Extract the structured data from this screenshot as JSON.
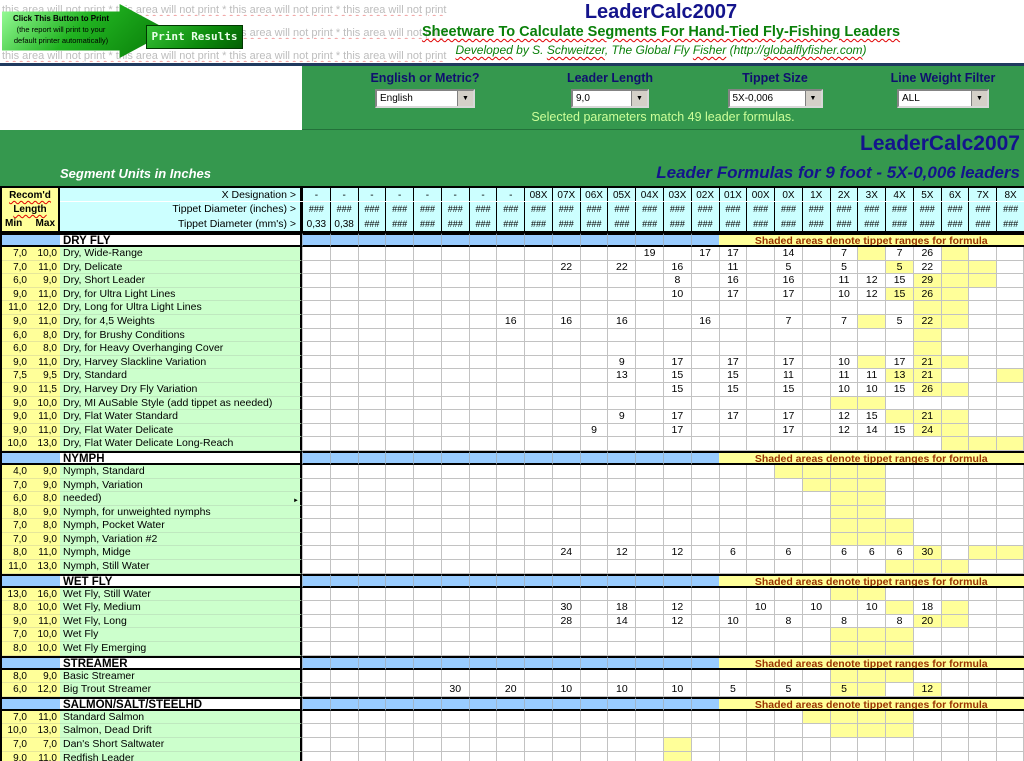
{
  "colors": {
    "band_green": "#35984e",
    "title_navy": "#14148c",
    "subtitle_green": "#0a800a",
    "header_cyan": "#ccffff",
    "accent_yellow": "#ffff99",
    "label_green": "#ccffcc",
    "section_blue": "#99ccff",
    "banner_text": "#993300"
  },
  "print_area": {
    "no_print_text": "this area will not print * this area will not print * this area will not print * this area will not print",
    "arrow_line1": "Click This Button to Print",
    "arrow_line2": "(the report will print to your",
    "arrow_line3": "default printer automatically)",
    "button_label": "Print Results"
  },
  "masthead": {
    "title": "LeaderCalc2007",
    "subtitle": "Sheetware To Calculate Segments For Hand-Tied Fly-Fishing Leaders",
    "byline_parts": [
      {
        "text": "Developed",
        "wavy": true
      },
      {
        "text": " by S. ",
        "wavy": false
      },
      {
        "text": "Schweitzer",
        "wavy": true
      },
      {
        "text": ", The Global Fly ",
        "wavy": false
      },
      {
        "text": "Fisher",
        "wavy": true
      },
      {
        "text": " (http://",
        "wavy": false
      },
      {
        "text": "globalflyfisher.com",
        "wavy": true
      },
      {
        "text": ")",
        "wavy": false
      }
    ]
  },
  "filters": [
    {
      "label": "English or Metric?",
      "value": "English"
    },
    {
      "label": "Leader Length",
      "value": "9,0"
    },
    {
      "label": "Tippet Size",
      "value": "5X-0,006"
    },
    {
      "label": "Line Weight Filter",
      "value": "ALL"
    }
  ],
  "filter_status": "Selected parameters match 49 leader formulas.",
  "sheet_header": {
    "app_title": "LeaderCalc2007",
    "units_label": "Segment Units in Inches",
    "formulas_title": "Leader Formulas for 9 foot - 5X-0,006 leaders"
  },
  "grid": {
    "recomd_line1": "Recom'd",
    "recomd_line2": "Length",
    "min_label": "Min",
    "max_label": "Max",
    "row_labels": [
      "X Designation >",
      "Tippet Diameter (inches) >",
      "Tippet Diameter (mm's) >"
    ],
    "columns": [
      "-",
      "-",
      "-",
      "-",
      "-",
      "-",
      "-",
      "-",
      "08X",
      "07X",
      "06X",
      "05X",
      "04X",
      "03X",
      "02X",
      "01X",
      "00X",
      "0X",
      "1X",
      "2X",
      "3X",
      "4X",
      "5X",
      "6X",
      "7X",
      "8X"
    ],
    "inches_row": [
      "###",
      "###",
      "###",
      "###",
      "###",
      "###",
      "###",
      "###",
      "###",
      "###",
      "###",
      "###",
      "###",
      "###",
      "###",
      "###",
      "###",
      "###",
      "###",
      "###",
      "###",
      "###",
      "###",
      "###",
      "###",
      "###"
    ],
    "mms_row": [
      "0,33",
      "0,38",
      "###",
      "###",
      "###",
      "###",
      "###",
      "###",
      "###",
      "###",
      "###",
      "###",
      "###",
      "###",
      "###",
      "###",
      "###",
      "###",
      "###",
      "###",
      "###",
      "###",
      "###",
      "###",
      "###",
      "###"
    ],
    "banner": "Shaded areas denote tippet ranges for formula"
  },
  "sections": [
    {
      "name": "DRY FLY",
      "rows": [
        {
          "min": "7,0",
          "max": "10,0",
          "label": "Dry, Wide-Range",
          "cells": {
            "12": "19",
            "14": "17",
            "15": "17",
            "17": "14",
            "19": "7",
            "21": "7",
            "22": "26"
          },
          "shaded": [
            20,
            23
          ]
        },
        {
          "min": "7,0",
          "max": "11,0",
          "label": "Dry, Delicate",
          "cells": {
            "9": "22",
            "11": "22",
            "13": "16",
            "15": "11",
            "17": "5",
            "19": "5",
            "21": "5",
            "22": "22"
          },
          "shaded": [
            21,
            23,
            24
          ]
        },
        {
          "min": "6,0",
          "max": "9,0",
          "label": "Dry, Short Leader",
          "cells": {
            "13": "8",
            "15": "16",
            "17": "16",
            "19": "11",
            "20": "12",
            "21": "15",
            "22": "29"
          },
          "shaded": [
            22,
            23,
            24
          ]
        },
        {
          "min": "9,0",
          "max": "11,0",
          "label": "Dry, for Ultra Light Lines",
          "cells": {
            "13": "10",
            "15": "17",
            "17": "17",
            "19": "10",
            "20": "12",
            "21": "15",
            "22": "26"
          },
          "shaded": [
            21,
            22,
            23
          ]
        },
        {
          "min": "11,0",
          "max": "12,0",
          "label": "Dry, Long for Ultra Light Lines",
          "cells": {},
          "shaded": [
            22,
            23
          ]
        },
        {
          "min": "9,0",
          "max": "11,0",
          "label": "Dry, for 4,5 Weights",
          "cells": {
            "7": "16",
            "9": "16",
            "11": "16",
            "14": "16",
            "17": "7",
            "19": "7",
            "21": "5",
            "22": "22"
          },
          "shaded": [
            20,
            22,
            23
          ]
        },
        {
          "min": "6,0",
          "max": "8,0",
          "label": "Dry, for Brushy Conditions",
          "cells": {},
          "shaded": [
            22
          ]
        },
        {
          "min": "6,0",
          "max": "8,0",
          "label": "Dry, for Heavy Overhanging Cover",
          "cells": {},
          "shaded": [
            22
          ]
        },
        {
          "min": "9,0",
          "max": "11,0",
          "label": "Dry, Harvey Slackline Variation",
          "cells": {
            "11": "9",
            "13": "17",
            "15": "17",
            "17": "17",
            "19": "10",
            "21": "17",
            "22": "21"
          },
          "shaded": [
            20,
            22,
            23
          ]
        },
        {
          "min": "7,5",
          "max": "9,5",
          "label": "Dry, Standard",
          "cells": {
            "11": "13",
            "13": "15",
            "15": "15",
            "17": "11",
            "19": "11",
            "20": "11",
            "21": "13",
            "22": "21"
          },
          "shaded": [
            21,
            22,
            25
          ]
        },
        {
          "min": "9,0",
          "max": "11,5",
          "label": "Dry, Harvey Dry Fly Variation",
          "cells": {
            "13": "15",
            "15": "15",
            "17": "15",
            "19": "10",
            "20": "10",
            "21": "15",
            "22": "26"
          },
          "shaded": [
            22,
            23
          ]
        },
        {
          "min": "9,0",
          "max": "10,0",
          "label": "Dry, MI AuSable Style (add tippet as needed)",
          "cells": {},
          "shaded": [
            19,
            20
          ]
        },
        {
          "min": "9,0",
          "max": "11,0",
          "label": "Dry, Flat Water Standard",
          "cells": {
            "11": "9",
            "13": "17",
            "15": "17",
            "17": "17",
            "19": "12",
            "20": "15",
            "22": "21"
          },
          "shaded": [
            21,
            22,
            23
          ]
        },
        {
          "min": "9,0",
          "max": "11,0",
          "label": "Dry, Flat Water Delicate",
          "cells": {
            "10": "9",
            "13": "17",
            "17": "17",
            "19": "12",
            "20": "14",
            "21": "15",
            "22": "24"
          },
          "shaded": [
            22,
            23
          ]
        },
        {
          "min": "10,0",
          "max": "13,0",
          "label": "Dry, Flat Water Delicate Long-Reach",
          "cells": {},
          "shaded": [
            23,
            24,
            25
          ]
        }
      ]
    },
    {
      "name": "NYMPH",
      "rows": [
        {
          "min": "4,0",
          "max": "9,0",
          "label": "Nymph, Standard",
          "cells": {},
          "shaded": [
            17,
            18,
            19,
            20
          ]
        },
        {
          "min": "7,0",
          "max": "9,0",
          "label": "Nymph, Variation",
          "cells": {},
          "shaded": [
            18,
            19,
            20
          ]
        },
        {
          "min": "6,0",
          "max": "8,0",
          "label": "needed)",
          "cells": {},
          "shaded": [
            19,
            20
          ],
          "marker": true
        },
        {
          "min": "8,0",
          "max": "9,0",
          "label": "Nymph, for unweighted nymphs",
          "cells": {},
          "shaded": [
            19,
            20
          ]
        },
        {
          "min": "7,0",
          "max": "8,0",
          "label": "Nymph, Pocket Water",
          "cells": {},
          "shaded": [
            19,
            20,
            21
          ]
        },
        {
          "min": "7,0",
          "max": "9,0",
          "label": "Nymph, Variation #2",
          "cells": {},
          "shaded": [
            19,
            20,
            21
          ]
        },
        {
          "min": "8,0",
          "max": "11,0",
          "label": "Nymph, Midge",
          "cells": {
            "9": "24",
            "11": "12",
            "13": "12",
            "15": "6",
            "17": "6",
            "19": "6",
            "20": "6",
            "21": "6",
            "22": "30"
          },
          "shaded": [
            22,
            24,
            25
          ]
        },
        {
          "min": "11,0",
          "max": "13,0",
          "label": "Nymph, Still Water",
          "cells": {},
          "shaded": [
            21,
            22,
            23
          ]
        }
      ]
    },
    {
      "name": "WET FLY",
      "rows": [
        {
          "min": "13,0",
          "max": "16,0",
          "label": "Wet Fly, Still Water",
          "cells": {},
          "shaded": [
            19,
            20
          ]
        },
        {
          "min": "8,0",
          "max": "10,0",
          "label": "Wet Fly, Medium",
          "cells": {
            "9": "30",
            "11": "18",
            "13": "12",
            "16": "10",
            "18": "10",
            "20": "10",
            "22": "18"
          },
          "shaded": [
            21,
            23
          ]
        },
        {
          "min": "9,0",
          "max": "11,0",
          "label": "Wet Fly, Long",
          "cells": {
            "9": "28",
            "11": "14",
            "13": "12",
            "15": "10",
            "17": "8",
            "19": "8",
            "21": "8",
            "22": "20"
          },
          "shaded": [
            22,
            23
          ]
        },
        {
          "min": "7,0",
          "max": "10,0",
          "label": "Wet Fly",
          "cells": {},
          "shaded": [
            19,
            20,
            21
          ]
        },
        {
          "min": "8,0",
          "max": "10,0",
          "label": "Wet Fly Emerging",
          "cells": {},
          "shaded": [
            19,
            20,
            21
          ]
        }
      ]
    },
    {
      "name": "STREAMER",
      "rows": [
        {
          "min": "8,0",
          "max": "9,0",
          "label": "Basic Streamer",
          "cells": {},
          "shaded": [
            19,
            20,
            21
          ]
        },
        {
          "min": "6,0",
          "max": "12,0",
          "label": "Big Trout Streamer",
          "cells": {
            "5": "30",
            "7": "20",
            "9": "10",
            "11": "10",
            "13": "10",
            "15": "5",
            "17": "5",
            "19": "5",
            "22": "12"
          },
          "shaded": [
            19,
            20,
            22
          ]
        }
      ]
    },
    {
      "name": "SALMON/SALT/STEELHD",
      "rows": [
        {
          "min": "7,0",
          "max": "11,0",
          "label": "Standard Salmon",
          "cells": {},
          "shaded": [
            18,
            19,
            20,
            21
          ]
        },
        {
          "min": "10,0",
          "max": "13,0",
          "label": "Salmon, Dead Drift",
          "cells": {},
          "shaded": [
            19,
            20,
            21
          ]
        },
        {
          "min": "7,0",
          "max": "7,0",
          "label": "Dan's Short Saltwater",
          "cells": {},
          "shaded": [
            13
          ]
        },
        {
          "min": "9,0",
          "max": "11,0",
          "label": "Redfish Leader",
          "cells": {},
          "shaded": [
            13
          ]
        }
      ]
    }
  ]
}
